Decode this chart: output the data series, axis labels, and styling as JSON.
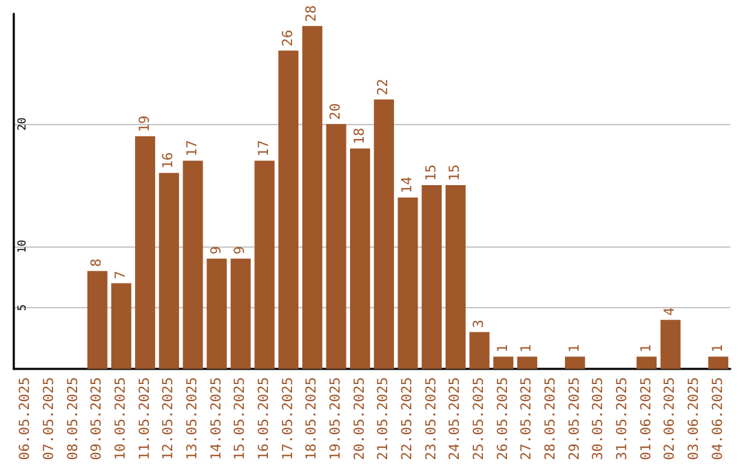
{
  "chart_data": {
    "type": "bar",
    "categories": [
      "06.05.2025",
      "07.05.2025",
      "08.05.2025",
      "09.05.2025",
      "10.05.2025",
      "11.05.2025",
      "12.05.2025",
      "13.05.2025",
      "14.05.2025",
      "15.05.2025",
      "16.05.2025",
      "17.05.2025",
      "18.05.2025",
      "19.05.2025",
      "20.05.2025",
      "21.05.2025",
      "22.05.2025",
      "23.05.2025",
      "24.05.2025",
      "25.05.2025",
      "26.05.2025",
      "27.05.2025",
      "28.05.2025",
      "29.05.2025",
      "30.05.2025",
      "31.05.2025",
      "01.06.2025",
      "02.06.2025",
      "03.06.2025",
      "04.06.2025"
    ],
    "values": [
      0,
      0,
      0,
      8,
      7,
      19,
      16,
      17,
      9,
      9,
      17,
      26,
      28,
      20,
      18,
      22,
      14,
      15,
      15,
      3,
      1,
      1,
      0,
      1,
      0,
      0,
      1,
      4,
      0,
      1
    ],
    "value_labels": [
      null,
      null,
      null,
      "8",
      "7",
      "19",
      "16",
      "17",
      "9",
      "9",
      "17",
      "26",
      "28",
      "20",
      "18",
      "22",
      "14",
      "15",
      "15",
      "3",
      "1",
      "1",
      null,
      "1",
      null,
      null,
      "1",
      "4",
      null,
      "1"
    ],
    "color": "#a0572a",
    "ylim": [
      0,
      29
    ],
    "yticks": [
      5,
      10,
      20
    ],
    "grid": "y"
  }
}
